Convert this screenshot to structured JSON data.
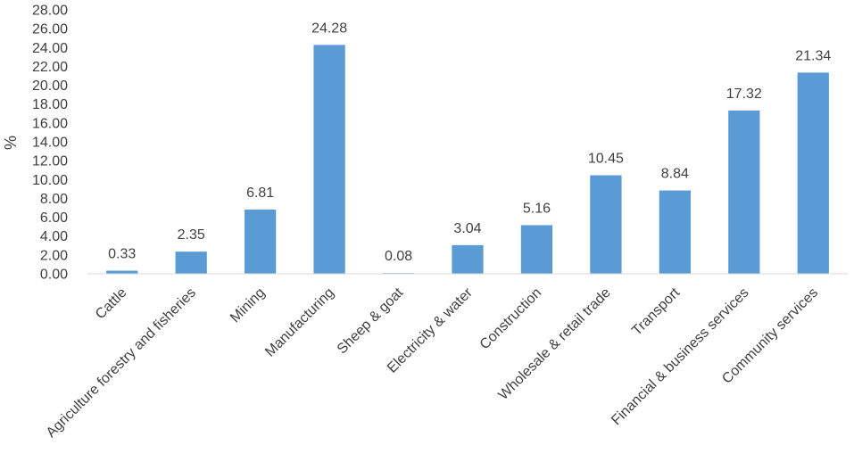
{
  "chart_data": {
    "type": "bar",
    "title": "",
    "xlabel": "",
    "ylabel": "%",
    "ylim": [
      0,
      28
    ],
    "ytick_step": 2,
    "ytick_labels": [
      "0.00",
      "2.00",
      "4.00",
      "6.00",
      "8.00",
      "10.00",
      "12.00",
      "14.00",
      "16.00",
      "18.00",
      "20.00",
      "22.00",
      "24.00",
      "26.00",
      "28.00"
    ],
    "grid": false,
    "legend": "none",
    "categories": [
      "Cattle",
      "Agriculture forestry and fisheries",
      "Mining",
      "Manufacturing",
      "Sheep & goat",
      "Electricity & water",
      "Construction",
      "Wholesale & retail trade",
      "Transport",
      "Financial & business services",
      "Community services"
    ],
    "values": [
      0.33,
      2.35,
      6.81,
      24.28,
      0.08,
      3.04,
      5.16,
      10.45,
      8.84,
      17.32,
      21.34
    ],
    "value_labels": [
      "0.33",
      "2.35",
      "6.81",
      "24.28",
      "0.08",
      "3.04",
      "5.16",
      "10.45",
      "8.84",
      "17.32",
      "21.34"
    ],
    "colors": {
      "bar": "#5b9bd5",
      "axis": "#d9d9d9",
      "text": "#404040"
    }
  }
}
